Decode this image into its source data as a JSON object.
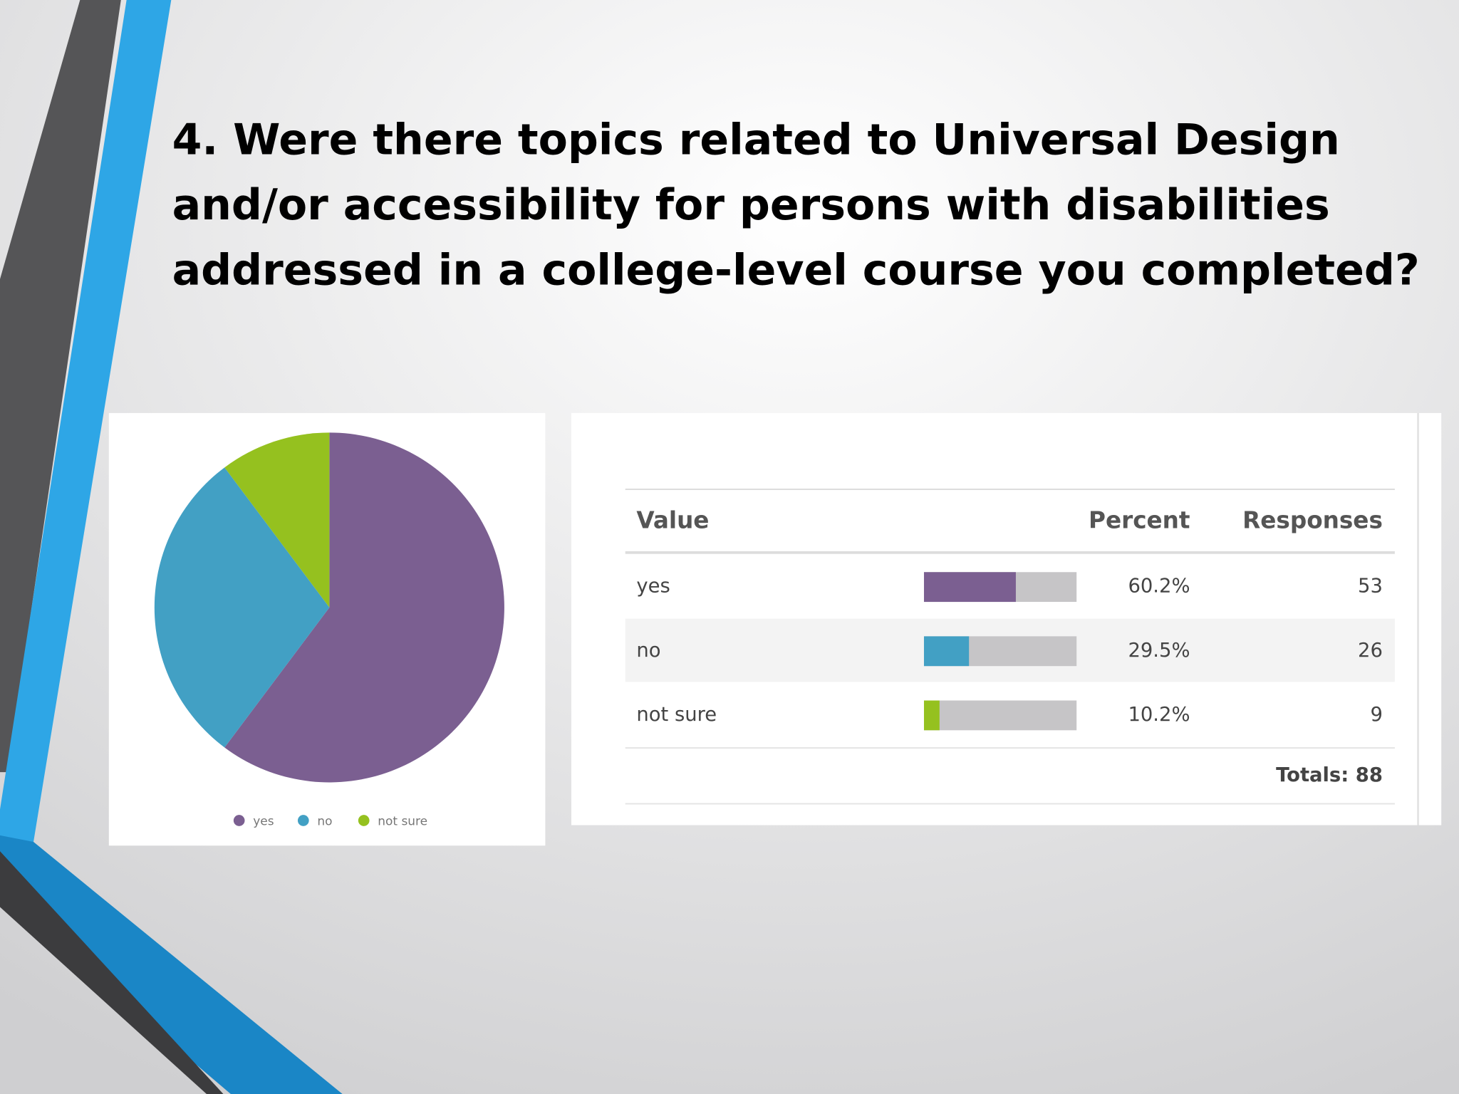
{
  "title_lines": [
    "4. Were there topics related to Universal Design",
    "and/or accessibility for persons with disabilities",
    "addressed in a college-level course you completed?"
  ],
  "chart_data": {
    "type": "pie",
    "categories": [
      "yes",
      "no",
      "not sure"
    ],
    "values": [
      53,
      26,
      9
    ],
    "colors": [
      "#7b5f91",
      "#42a0c4",
      "#95c11f"
    ]
  },
  "table": {
    "headers": [
      "Value",
      "Percent",
      "Responses"
    ],
    "percent": {
      "values": [
        60.2,
        29.5,
        10.2
      ],
      "value_labels": [
        "60.2%",
        "29.5%",
        "10.2%"
      ],
      "max": 100
    },
    "totals": "Totals: 88"
  }
}
